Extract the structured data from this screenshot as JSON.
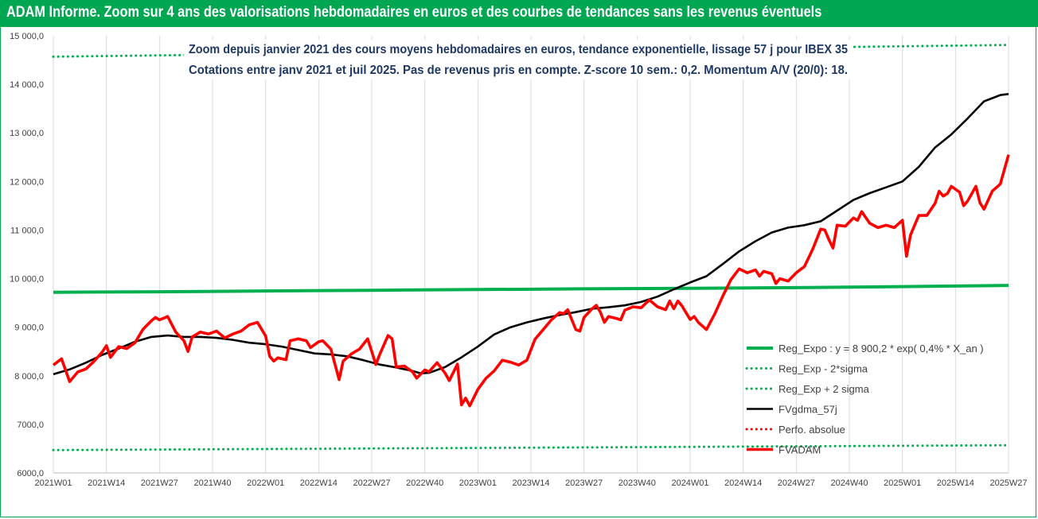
{
  "header": {
    "title": "ADAM Informe. Zoom sur 4 ans des valorisations hebdomadaires en euros et des courbes de tendances sans les revenus éventuels"
  },
  "colors": {
    "header_bg": "#00a651",
    "reg_expo": "#00b050",
    "sigma_lines": "#00b050",
    "fvgdma": "#000000",
    "perfo": "#ff0000",
    "fvadam": "#ff0000",
    "grid": "#d9d9d9"
  },
  "chart_data": {
    "type": "line",
    "title": "Zoom depuis janvier 2021 des cours moyens hebdomadaires en euros, tendance exponentielle, lissage 57 j pour IBEX 35",
    "subtitle": "Cotations entre janv 2021 et juil 2025. Pas de revenus pris en compte. Z-score 10 sem.: 0,2. Momentum A/V (20/0): 18.",
    "xlabel": "",
    "ylabel": "",
    "ylim": [
      6000,
      15000
    ],
    "xlim": [
      0,
      234
    ],
    "grid": "vertical",
    "legend_position": "bottom-right",
    "y_ticks": [
      {
        "value": 6000,
        "label": "6000,0"
      },
      {
        "value": 7000,
        "label": "7000,0"
      },
      {
        "value": 8000,
        "label": "8 000,0"
      },
      {
        "value": 9000,
        "label": "9 000,0"
      },
      {
        "value": 10000,
        "label": "10 000,0"
      },
      {
        "value": 11000,
        "label": "11 000,0"
      },
      {
        "value": 12000,
        "label": "12 000,0"
      },
      {
        "value": 13000,
        "label": "13 000,0"
      },
      {
        "value": 14000,
        "label": "14 000,0"
      },
      {
        "value": 15000,
        "label": "15 000,0"
      }
    ],
    "x_ticks": [
      {
        "index": 0,
        "label": "2021W01"
      },
      {
        "index": 13,
        "label": "2021W14"
      },
      {
        "index": 26,
        "label": "2021W27"
      },
      {
        "index": 39,
        "label": "2021W40"
      },
      {
        "index": 52,
        "label": "2022W01"
      },
      {
        "index": 65,
        "label": "2022W14"
      },
      {
        "index": 78,
        "label": "2022W27"
      },
      {
        "index": 91,
        "label": "2022W40"
      },
      {
        "index": 104,
        "label": "2023W01"
      },
      {
        "index": 117,
        "label": "2023W14"
      },
      {
        "index": 130,
        "label": "2023W27"
      },
      {
        "index": 143,
        "label": "2023W40"
      },
      {
        "index": 156,
        "label": "2024W01"
      },
      {
        "index": 169,
        "label": "2024W14"
      },
      {
        "index": 182,
        "label": "2024W27"
      },
      {
        "index": 195,
        "label": "2024W40"
      },
      {
        "index": 208,
        "label": "2025W01"
      },
      {
        "index": 221,
        "label": "2025W14"
      },
      {
        "index": 234,
        "label": "2025W27"
      }
    ],
    "series": [
      {
        "name": "Reg_Expo : y = 8 900,2 * exp( 0,4% *  X_an )",
        "style": "solid-thick",
        "points": [
          [
            0,
            9720
          ],
          [
            26,
            9730
          ],
          [
            52,
            9745
          ],
          [
            78,
            9760
          ],
          [
            104,
            9775
          ],
          [
            130,
            9790
          ],
          [
            156,
            9800
          ],
          [
            182,
            9815
          ],
          [
            208,
            9835
          ],
          [
            234,
            9860
          ]
        ]
      },
      {
        "name": "Reg_Exp - 2*sigma",
        "style": "dotted",
        "points": [
          [
            0,
            6470
          ],
          [
            234,
            6570
          ]
        ]
      },
      {
        "name": "Reg_Exp + 2 sigma",
        "style": "dotted",
        "points": [
          [
            0,
            14570
          ],
          [
            234,
            14810
          ]
        ]
      },
      {
        "name": "FVgdma_57j",
        "style": "solid",
        "points": [
          [
            0,
            8030
          ],
          [
            4,
            8130
          ],
          [
            8,
            8270
          ],
          [
            12,
            8430
          ],
          [
            16,
            8560
          ],
          [
            20,
            8700
          ],
          [
            24,
            8800
          ],
          [
            28,
            8830
          ],
          [
            32,
            8800
          ],
          [
            36,
            8800
          ],
          [
            40,
            8780
          ],
          [
            44,
            8740
          ],
          [
            48,
            8680
          ],
          [
            52,
            8650
          ],
          [
            56,
            8600
          ],
          [
            60,
            8530
          ],
          [
            64,
            8460
          ],
          [
            68,
            8440
          ],
          [
            72,
            8400
          ],
          [
            76,
            8320
          ],
          [
            80,
            8230
          ],
          [
            84,
            8170
          ],
          [
            88,
            8100
          ],
          [
            90,
            8050
          ],
          [
            92,
            8060
          ],
          [
            96,
            8180
          ],
          [
            100,
            8380
          ],
          [
            104,
            8600
          ],
          [
            108,
            8850
          ],
          [
            112,
            9000
          ],
          [
            116,
            9100
          ],
          [
            120,
            9180
          ],
          [
            124,
            9250
          ],
          [
            128,
            9310
          ],
          [
            132,
            9380
          ],
          [
            136,
            9410
          ],
          [
            140,
            9450
          ],
          [
            144,
            9520
          ],
          [
            148,
            9630
          ],
          [
            152,
            9780
          ],
          [
            156,
            9920
          ],
          [
            160,
            10050
          ],
          [
            164,
            10300
          ],
          [
            168,
            10560
          ],
          [
            172,
            10770
          ],
          [
            176,
            10950
          ],
          [
            180,
            11050
          ],
          [
            184,
            11100
          ],
          [
            188,
            11180
          ],
          [
            192,
            11400
          ],
          [
            196,
            11620
          ],
          [
            200,
            11760
          ],
          [
            204,
            11880
          ],
          [
            208,
            12000
          ],
          [
            212,
            12300
          ],
          [
            216,
            12700
          ],
          [
            220,
            12970
          ],
          [
            224,
            13300
          ],
          [
            228,
            13650
          ],
          [
            232,
            13780
          ],
          [
            234,
            13800
          ]
        ]
      },
      {
        "name": "Perfo. absolue",
        "style": "dotted-red",
        "points": []
      },
      {
        "name": "FVADAM",
        "style": "solid-thick",
        "points": [
          [
            0,
            8220
          ],
          [
            2,
            8350
          ],
          [
            4,
            7880
          ],
          [
            6,
            8080
          ],
          [
            8,
            8140
          ],
          [
            10,
            8300
          ],
          [
            12,
            8490
          ],
          [
            13,
            8620
          ],
          [
            14,
            8380
          ],
          [
            16,
            8600
          ],
          [
            18,
            8560
          ],
          [
            20,
            8680
          ],
          [
            22,
            8960
          ],
          [
            24,
            9130
          ],
          [
            25,
            9200
          ],
          [
            26,
            9150
          ],
          [
            28,
            9220
          ],
          [
            30,
            8900
          ],
          [
            32,
            8720
          ],
          [
            33,
            8500
          ],
          [
            34,
            8800
          ],
          [
            36,
            8900
          ],
          [
            38,
            8860
          ],
          [
            40,
            8920
          ],
          [
            42,
            8780
          ],
          [
            44,
            8860
          ],
          [
            46,
            8920
          ],
          [
            48,
            9050
          ],
          [
            50,
            9100
          ],
          [
            52,
            8820
          ],
          [
            53,
            8400
          ],
          [
            54,
            8300
          ],
          [
            55,
            8370
          ],
          [
            57,
            8330
          ],
          [
            58,
            8720
          ],
          [
            60,
            8760
          ],
          [
            62,
            8720
          ],
          [
            63,
            8580
          ],
          [
            65,
            8700
          ],
          [
            66,
            8720
          ],
          [
            68,
            8550
          ],
          [
            70,
            7920
          ],
          [
            71,
            8300
          ],
          [
            73,
            8450
          ],
          [
            75,
            8550
          ],
          [
            77,
            8760
          ],
          [
            78,
            8500
          ],
          [
            79,
            8230
          ],
          [
            80,
            8450
          ],
          [
            82,
            8830
          ],
          [
            83,
            8760
          ],
          [
            84,
            8180
          ],
          [
            86,
            8200
          ],
          [
            88,
            8080
          ],
          [
            89,
            7950
          ],
          [
            91,
            8120
          ],
          [
            92,
            8080
          ],
          [
            94,
            8270
          ],
          [
            96,
            8050
          ],
          [
            97,
            7900
          ],
          [
            99,
            8240
          ],
          [
            100,
            7400
          ],
          [
            101,
            7540
          ],
          [
            102,
            7380
          ],
          [
            104,
            7720
          ],
          [
            106,
            7950
          ],
          [
            108,
            8100
          ],
          [
            110,
            8320
          ],
          [
            112,
            8280
          ],
          [
            114,
            8220
          ],
          [
            116,
            8320
          ],
          [
            118,
            8750
          ],
          [
            120,
            8950
          ],
          [
            122,
            9150
          ],
          [
            124,
            9300
          ],
          [
            125,
            9280
          ],
          [
            126,
            9360
          ],
          [
            128,
            8950
          ],
          [
            129,
            8920
          ],
          [
            130,
            9200
          ],
          [
            132,
            9380
          ],
          [
            133,
            9450
          ],
          [
            134,
            9310
          ],
          [
            135,
            9100
          ],
          [
            136,
            9220
          ],
          [
            138,
            9180
          ],
          [
            139,
            9150
          ],
          [
            140,
            9350
          ],
          [
            142,
            9420
          ],
          [
            144,
            9400
          ],
          [
            146,
            9560
          ],
          [
            148,
            9420
          ],
          [
            150,
            9360
          ],
          [
            151,
            9540
          ],
          [
            152,
            9380
          ],
          [
            153,
            9540
          ],
          [
            154,
            9440
          ],
          [
            156,
            9160
          ],
          [
            157,
            9220
          ],
          [
            158,
            9100
          ],
          [
            160,
            8950
          ],
          [
            162,
            9270
          ],
          [
            164,
            9640
          ],
          [
            166,
            9980
          ],
          [
            168,
            10200
          ],
          [
            170,
            10120
          ],
          [
            172,
            10180
          ],
          [
            173,
            10050
          ],
          [
            174,
            10150
          ],
          [
            176,
            10100
          ],
          [
            177,
            9900
          ],
          [
            178,
            10000
          ],
          [
            180,
            9950
          ],
          [
            182,
            10120
          ],
          [
            184,
            10250
          ],
          [
            186,
            10600
          ],
          [
            188,
            11020
          ],
          [
            189,
            11000
          ],
          [
            190,
            10800
          ],
          [
            191,
            10630
          ],
          [
            192,
            11100
          ],
          [
            194,
            11080
          ],
          [
            196,
            11250
          ],
          [
            197,
            11200
          ],
          [
            198,
            11380
          ],
          [
            200,
            11140
          ],
          [
            202,
            11050
          ],
          [
            204,
            11100
          ],
          [
            206,
            11050
          ],
          [
            208,
            11200
          ],
          [
            209,
            10460
          ],
          [
            210,
            10900
          ],
          [
            212,
            11300
          ],
          [
            214,
            11300
          ],
          [
            216,
            11550
          ],
          [
            217,
            11800
          ],
          [
            218,
            11700
          ],
          [
            219,
            11750
          ],
          [
            220,
            11900
          ],
          [
            222,
            11780
          ],
          [
            223,
            11500
          ],
          [
            224,
            11600
          ],
          [
            226,
            11900
          ],
          [
            227,
            11560
          ],
          [
            228,
            11430
          ],
          [
            230,
            11800
          ],
          [
            232,
            11950
          ],
          [
            234,
            12550
          ]
        ]
      }
    ]
  },
  "legend": {
    "items": [
      {
        "label": "Reg_Expo : y = 8 900,2 * exp( 0,4% *  X_an )",
        "color": "#00b050",
        "style": "solid-thick"
      },
      {
        "label": "Reg_Exp - 2*sigma",
        "color": "#00b050",
        "style": "dotted"
      },
      {
        "label": "Reg_Exp + 2 sigma",
        "color": "#00b050",
        "style": "dotted"
      },
      {
        "label": "FVgdma_57j",
        "color": "#000000",
        "style": "solid"
      },
      {
        "label": "Perfo. absolue",
        "color": "#ff0000",
        "style": "dotted"
      },
      {
        "label": "FVADAM",
        "color": "#ff0000",
        "style": "solid-thick"
      }
    ]
  }
}
